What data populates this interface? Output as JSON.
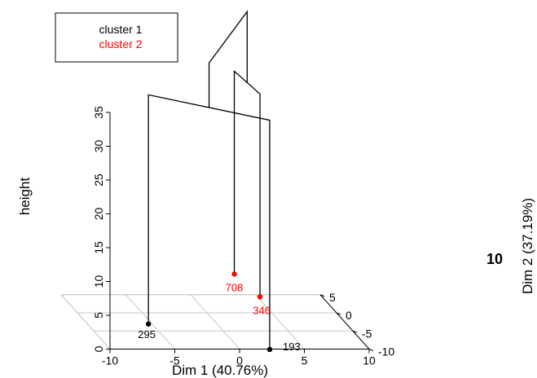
{
  "chart_data": {
    "type": "3d-dendrogram",
    "xlabel": "Dim 1 (40.76%)",
    "ylabel": "Dim 2 (37.19%)",
    "zlabel": "height",
    "extra_label": "10",
    "xlim": [
      -10,
      10
    ],
    "ylim": [
      -10,
      5
    ],
    "zlim": [
      0,
      35
    ],
    "x_ticks": [
      "-10",
      "-5",
      "0",
      "5",
      "10"
    ],
    "y_ticks": [
      "-10",
      "-5",
      "0",
      "5"
    ],
    "z_ticks": [
      "0",
      "5",
      "10",
      "15",
      "20",
      "25",
      "30",
      "35"
    ],
    "legend": {
      "position": "top-left",
      "entries": [
        {
          "name": "cluster 1",
          "color": "#000000"
        },
        {
          "name": "cluster 2",
          "color": "#ff0000"
        }
      ]
    },
    "points": [
      {
        "label": "295",
        "x": -5.3,
        "y": -3.1,
        "cluster": 1
      },
      {
        "label": "193",
        "x": 2.3,
        "y": -10.1,
        "cluster": 1
      },
      {
        "label": "346",
        "x": 5.2,
        "y": 4.4,
        "cluster": 2
      },
      {
        "label": "708",
        "x": 4.8,
        "y": 10.7,
        "cluster": 2
      }
    ],
    "merges": [
      {
        "points": [
          "295",
          "193"
        ],
        "height": 33.9
      },
      {
        "points": [
          "346",
          "708"
        ],
        "height": 30.0
      },
      {
        "groups": [
          "295-193",
          "346-708"
        ],
        "height": 40.5
      }
    ]
  }
}
